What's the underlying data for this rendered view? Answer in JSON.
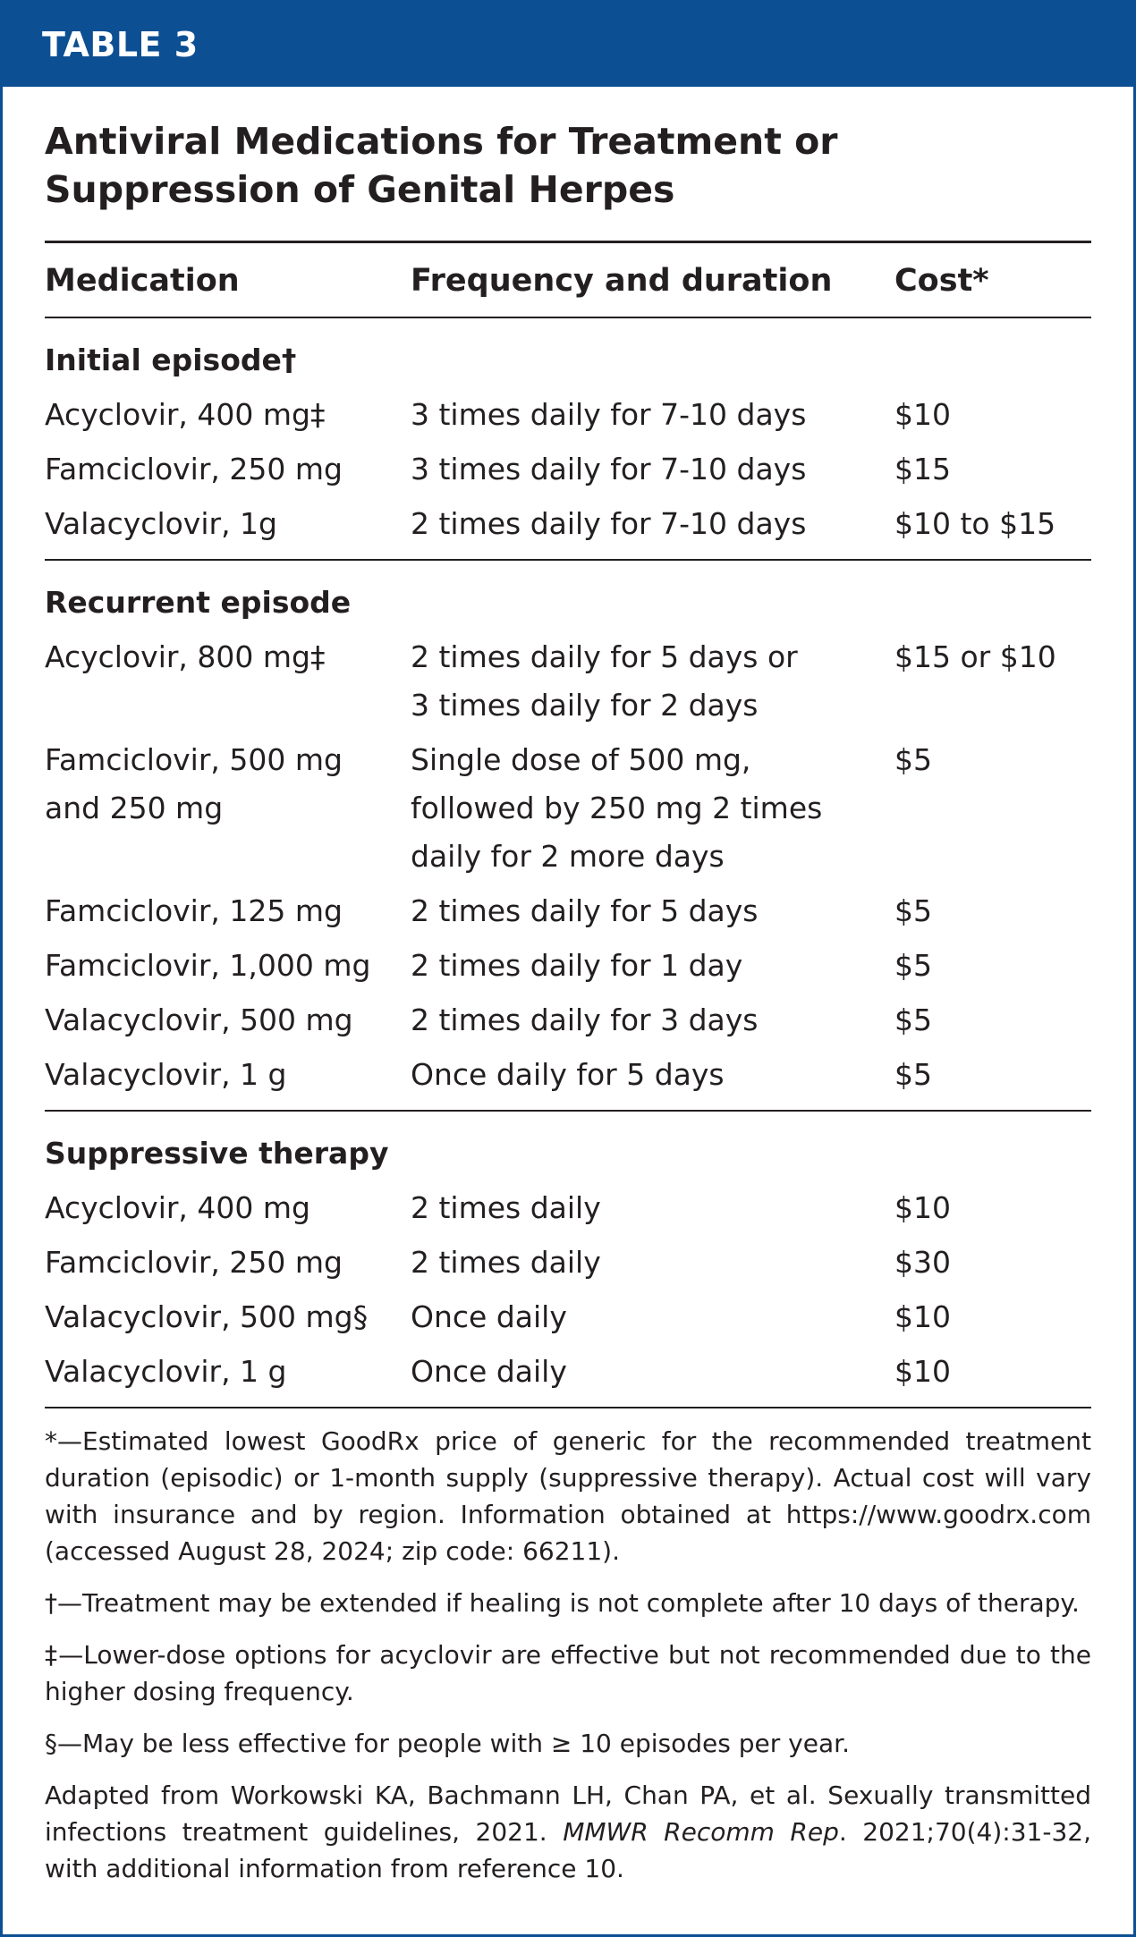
{
  "header": {
    "label": "TABLE 3"
  },
  "title": "Antiviral Medications for Treatment or Suppression of Genital Herpes",
  "table": {
    "columns": [
      "Medication",
      "Frequency and duration",
      "Cost*"
    ],
    "sections": [
      {
        "heading": "Initial episode†",
        "rows": [
          [
            "Acyclovir, 400 mg‡",
            "3 times daily for 7-10 days",
            "$10"
          ],
          [
            "Famciclovir, 250 mg",
            "3 times daily for 7-10 days",
            "$15"
          ],
          [
            "Valacyclovir, 1g",
            "2 times daily for 7-10 days",
            "$10 to $15"
          ]
        ]
      },
      {
        "heading": "Recurrent episode",
        "rows": [
          [
            "Acyclovir, 800 mg‡",
            [
              "2 times daily for 5 days or",
              "3 times daily for 2 days"
            ],
            "$15 or $10"
          ],
          [
            [
              "Famciclovir, 500 mg",
              "and 250 mg"
            ],
            [
              "Single dose of 500 mg,",
              "followed by 250 mg 2 times",
              "daily for 2 more days"
            ],
            "$5"
          ],
          [
            "Famciclovir, 125 mg",
            "2 times daily for 5 days",
            "$5"
          ],
          [
            "Famciclovir, 1,000 mg",
            "2 times daily for 1 day",
            "$5"
          ],
          [
            "Valacyclovir, 500 mg",
            "2 times daily for 3 days",
            "$5"
          ],
          [
            "Valacyclovir, 1 g",
            "Once daily for 5 days",
            "$5"
          ]
        ]
      },
      {
        "heading": "Suppressive therapy",
        "rows": [
          [
            "Acyclovir, 400 mg",
            "2 times daily",
            "$10"
          ],
          [
            "Famciclovir, 250 mg",
            "2 times daily",
            "$30"
          ],
          [
            "Valacyclovir, 500 mg§",
            "Once daily",
            "$10"
          ],
          [
            "Valacyclovir, 1 g",
            "Once daily",
            "$10"
          ]
        ]
      }
    ]
  },
  "footnotes": [
    "*—Estimated lowest GoodRx price of generic for the recommended treatment duration (episodic) or 1-month supply (suppressive therapy). Actual cost will vary with insurance and by region. Information obtained at https://www.goodrx.com (accessed August 28, 2024; zip code: 66211).",
    "†—Treatment may be extended if healing is not complete after 10 days of therapy.",
    "‡—Lower-dose options for acyclovir are effective but not recommended due to the higher dosing frequency.",
    "§—May be less effective for people with ≥ 10 episodes per year."
  ],
  "source": [
    {
      "text": "Adapted from Workowski KA, Bachmann LH, Chan PA, et al. Sexually transmitted infections treatment guidelines, 2021. ",
      "italic": false
    },
    {
      "text": "MMWR Recomm Rep",
      "italic": true
    },
    {
      "text": ". 2021;70(4):31-32, with additional information from reference 10.",
      "italic": false
    }
  ]
}
